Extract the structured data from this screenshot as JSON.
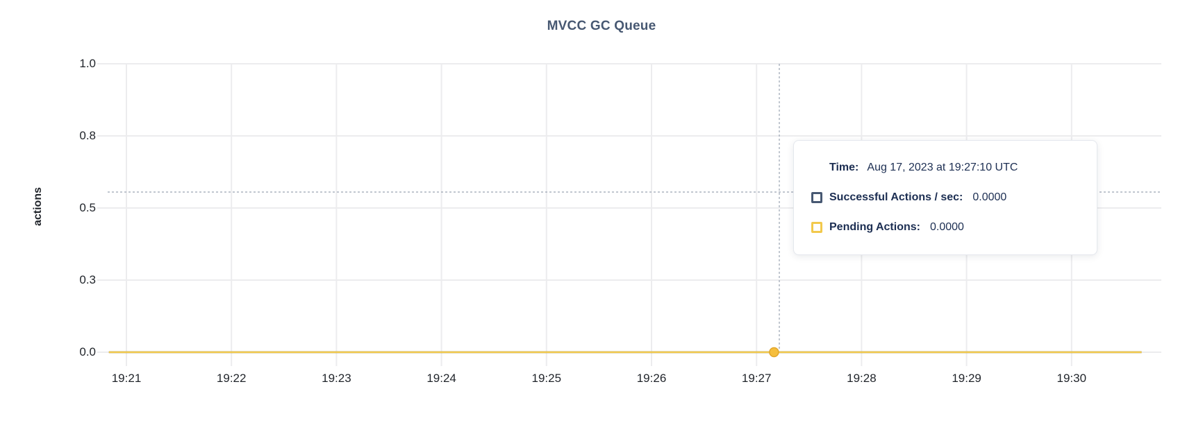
{
  "chart_data": {
    "type": "line",
    "title": "MVCC GC Queue",
    "ylabel": "actions",
    "xlabel": "",
    "ylim": [
      0,
      1
    ],
    "grid": true,
    "legend_position": "tooltip-only",
    "y_ticks": [
      {
        "value": 0,
        "label": "0.0"
      },
      {
        "value": 0.25,
        "label": "0.3"
      },
      {
        "value": 0.5,
        "label": "0.5"
      },
      {
        "value": 0.75,
        "label": "0.8"
      },
      {
        "value": 1,
        "label": "1.0"
      }
    ],
    "categories": [
      "19:21",
      "19:22",
      "19:23",
      "19:24",
      "19:25",
      "19:26",
      "19:27",
      "19:28",
      "19:29",
      "19:30"
    ],
    "x_range": [
      "19:20:50",
      "19:30:40"
    ],
    "series": [
      {
        "name": "Successful Actions / sec",
        "color": "#475872",
        "values": [
          0,
          0,
          0,
          0,
          0,
          0,
          0,
          0,
          0,
          0
        ]
      },
      {
        "name": "Pending Actions",
        "color": "#F2C94C",
        "values": [
          0,
          0,
          0,
          0,
          0,
          0,
          0,
          0,
          0,
          0
        ]
      }
    ]
  },
  "hover": {
    "time": "19:27:10",
    "snapped_series": "Pending Actions",
    "snapped_value": 0
  },
  "tooltip": {
    "time_label": "Time:",
    "time_value": "Aug 17, 2023 at 19:27:10 UTC",
    "rows": [
      {
        "label": "Successful Actions / sec:",
        "value": "0.0000",
        "color": "#475872"
      },
      {
        "label": "Pending Actions:",
        "value": "0.0000",
        "color": "#F2C94C"
      }
    ]
  },
  "colors": {
    "title": "#475872",
    "axis_text": "#1f2329",
    "grid": "#ECECEE",
    "crosshair": "#9AA3B2",
    "dot_fill": "#F5BE3D",
    "dot_stroke": "#E2A62B",
    "tooltip_text": "#1C2E52",
    "tooltip_border": "#E4E7ED"
  }
}
